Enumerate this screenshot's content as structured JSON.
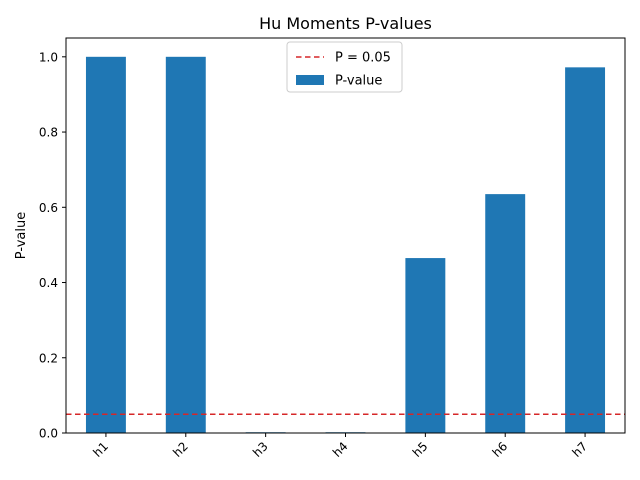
{
  "chart_data": {
    "type": "bar",
    "title": "Hu Moments P-values",
    "xlabel": "",
    "ylabel": "P-value",
    "categories": [
      "h1",
      "h2",
      "h3",
      "h4",
      "h5",
      "h6",
      "h7"
    ],
    "series": [
      {
        "name": "P-value",
        "values": [
          1.0,
          1.0,
          0.002,
          0.002,
          0.465,
          0.635,
          0.972
        ],
        "color": "#1f77b4"
      }
    ],
    "reference_line": {
      "label": "P = 0.05",
      "value": 0.05,
      "color": "#d62728",
      "style": "dashed"
    },
    "ylim": [
      0,
      1.05
    ],
    "yticks": [
      0.0,
      0.2,
      0.4,
      0.6,
      0.8,
      1.0
    ],
    "ytick_labels": [
      "0.0",
      "0.2",
      "0.4",
      "0.6",
      "0.8",
      "1.0"
    ],
    "xtick_rotation": 45,
    "grid": false,
    "legend_position": "top-center"
  }
}
